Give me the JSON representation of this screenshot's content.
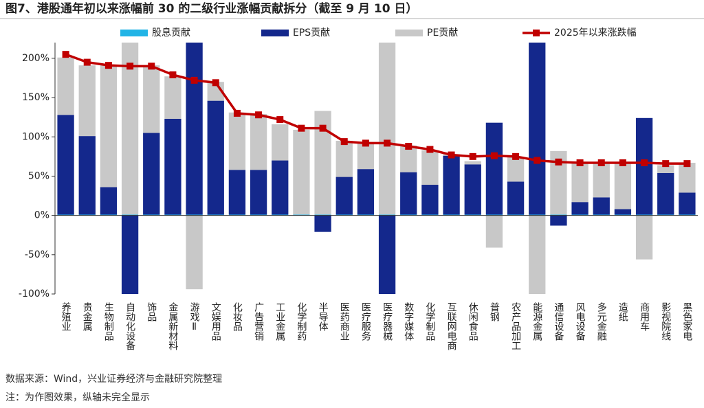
{
  "chart_data": {
    "type": "bar-line",
    "title": "图7、港股通年初以来涨幅前 30 的二级行业涨幅贡献拆分（截至 9 月 10 日）",
    "categories": [
      "养殖业",
      "贵金属",
      "生物制品",
      "自动化设备",
      "饰品",
      "金属新材料",
      "游戏Ⅱ",
      "文娱用品",
      "化妆品",
      "广告营销",
      "工业金属",
      "化学制药",
      "半导体",
      "医药商业",
      "医疗服务",
      "医疗器械",
      "数字媒体",
      "化学制品",
      "互联网电商",
      "休闲食品",
      "普钢",
      "农产品加工",
      "能源金属",
      "通信设备",
      "风电设备",
      "多元金融",
      "造纸",
      "商用车",
      "影视院线",
      "黑色家电"
    ],
    "series": [
      {
        "name": "股息贡献",
        "type": "bar",
        "color": "#22b4e6",
        "values": [
          1,
          1,
          1,
          1,
          1,
          1,
          1,
          1,
          1,
          1,
          1,
          1,
          1,
          1,
          1,
          1,
          1,
          1,
          1,
          1,
          1,
          1,
          1,
          1,
          1,
          1,
          1,
          1,
          1,
          1
        ]
      },
      {
        "name": "EPS贡献",
        "type": "bar",
        "color": "#14288c",
        "values": [
          127,
          100,
          35,
          -100,
          104,
          122,
          220,
          145,
          57,
          57,
          69,
          0,
          -21,
          48,
          58,
          -100,
          54,
          38,
          75,
          64,
          117,
          42,
          220,
          -13,
          16,
          22,
          7,
          123,
          53,
          28
        ]
      },
      {
        "name": "PE贡献",
        "type": "bar",
        "color": "#c8c8c8",
        "values": [
          73,
          90,
          155,
          220,
          86,
          54,
          -94,
          24,
          73,
          71,
          46,
          108,
          132,
          46,
          34,
          220,
          34,
          44,
          2,
          4,
          -41,
          31,
          -100,
          81,
          51,
          45,
          58,
          -56,
          10,
          38
        ]
      },
      {
        "name": "2025年以来涨跌幅",
        "type": "line",
        "color": "#c00000",
        "values": [
          205,
          195,
          191,
          190,
          190,
          179,
          172,
          169,
          130,
          128,
          122,
          111,
          111,
          94,
          92,
          92,
          88,
          84,
          77,
          75,
          76,
          75,
          70,
          68,
          67,
          67,
          67,
          67,
          66,
          66
        ]
      }
    ],
    "ylim": [
      -100,
      220
    ],
    "yticks": [
      {
        "value": -100,
        "label": "-100%"
      },
      {
        "value": -50,
        "label": "-50%"
      },
      {
        "value": 0,
        "label": "0%"
      },
      {
        "value": 50,
        "label": "50%"
      },
      {
        "value": 100,
        "label": "100%"
      },
      {
        "value": 150,
        "label": "150%"
      },
      {
        "value": 200,
        "label": "200%"
      }
    ],
    "notes": [
      "数据来源：Wind，兴业证券经济与金融研究院整理",
      "注：为作图效果，纵轴未完全显示"
    ]
  }
}
